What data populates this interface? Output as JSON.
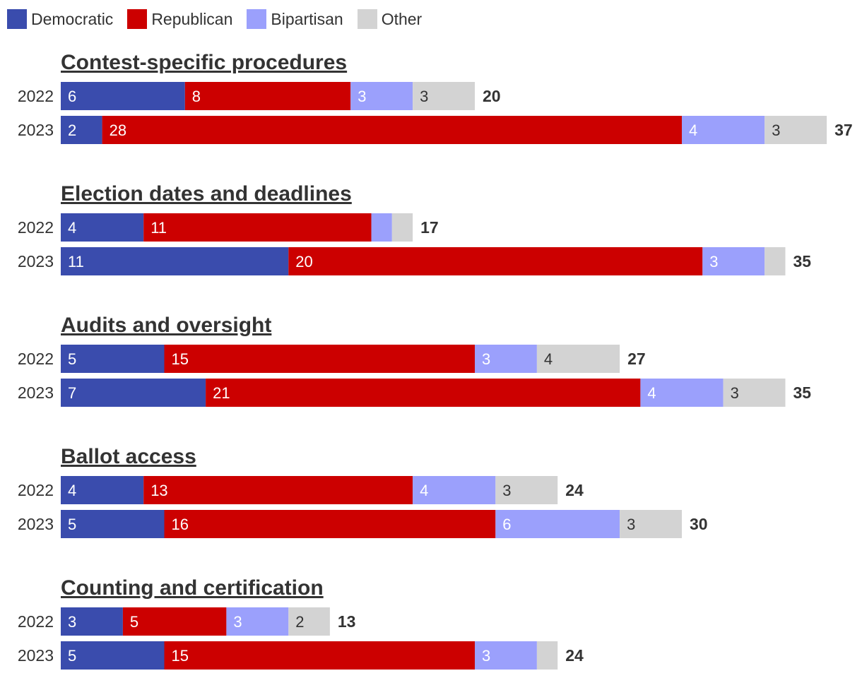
{
  "chart_data": {
    "type": "bar",
    "orientation": "horizontal-stacked",
    "legend_placement": "top-left",
    "series": [
      {
        "key": "democratic",
        "name": "Democratic",
        "color": "#3a4cad",
        "label_color": "#ffffff"
      },
      {
        "key": "republican",
        "name": "Republican",
        "color": "#cc0000",
        "label_color": "#ffffff"
      },
      {
        "key": "bipartisan",
        "name": "Bipartisan",
        "color": "#9ba0fc",
        "label_color": "#ffffff"
      },
      {
        "key": "other",
        "name": "Other",
        "color": "#d3d3d3",
        "label_color": "#333333"
      }
    ],
    "groups": [
      {
        "title": "Contest-specific procedures",
        "rows": [
          {
            "year": "2022",
            "values": [
              6,
              8,
              3,
              3
            ],
            "labels": [
              "6",
              "8",
              "3",
              "3"
            ],
            "total": "20"
          },
          {
            "year": "2023",
            "values": [
              2,
              28,
              4,
              3
            ],
            "labels": [
              "2",
              "28",
              "4",
              "3"
            ],
            "total": "37"
          }
        ]
      },
      {
        "title": "Election dates and deadlines",
        "rows": [
          {
            "year": "2022",
            "values": [
              4,
              11,
              1,
              1
            ],
            "labels": [
              "4",
              "11",
              "",
              ""
            ],
            "total": "17"
          },
          {
            "year": "2023",
            "values": [
              11,
              20,
              3,
              1
            ],
            "labels": [
              "11",
              "20",
              "3",
              ""
            ],
            "total": "35"
          }
        ]
      },
      {
        "title": "Audits and oversight",
        "rows": [
          {
            "year": "2022",
            "values": [
              5,
              15,
              3,
              4
            ],
            "labels": [
              "5",
              "15",
              "3",
              "4"
            ],
            "total": "27"
          },
          {
            "year": "2023",
            "values": [
              7,
              21,
              4,
              3
            ],
            "labels": [
              "7",
              "21",
              "4",
              "3"
            ],
            "total": "35"
          }
        ]
      },
      {
        "title": "Ballot access",
        "rows": [
          {
            "year": "2022",
            "values": [
              4,
              13,
              4,
              3
            ],
            "labels": [
              "4",
              "13",
              "4",
              "3"
            ],
            "total": "24"
          },
          {
            "year": "2023",
            "values": [
              5,
              16,
              6,
              3
            ],
            "labels": [
              "5",
              "16",
              "6",
              "3"
            ],
            "total": "30"
          }
        ]
      },
      {
        "title": "Counting and certification",
        "rows": [
          {
            "year": "2022",
            "values": [
              3,
              5,
              3,
              2
            ],
            "labels": [
              "3",
              "5",
              "3",
              "2"
            ],
            "total": "13"
          },
          {
            "year": "2023",
            "values": [
              5,
              15,
              3,
              1
            ],
            "labels": [
              "5",
              "15",
              "3",
              ""
            ],
            "total": "24"
          }
        ]
      }
    ]
  }
}
